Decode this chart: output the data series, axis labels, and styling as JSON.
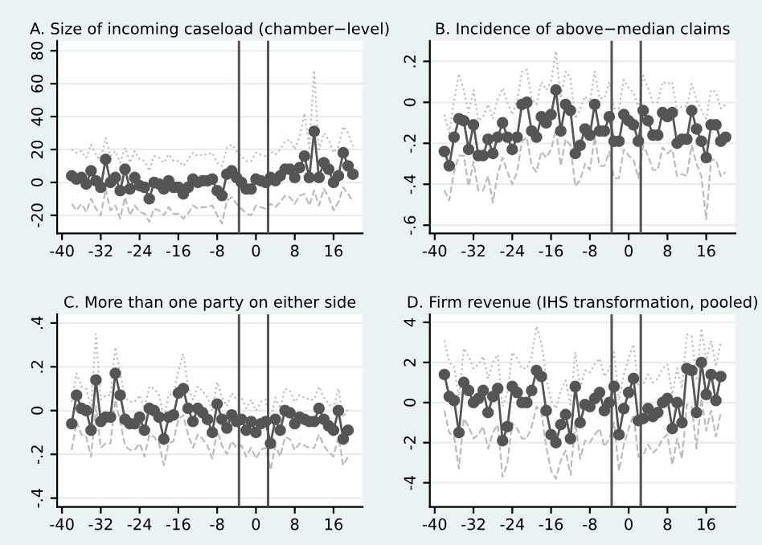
{
  "chart_data": [
    {
      "type": "line",
      "title": "A. Size of incoming caseload (chamber−level)",
      "x": [
        -38,
        -37,
        -36,
        -35,
        -34,
        -33,
        -32,
        -31,
        -30,
        -29,
        -28,
        -27,
        -26,
        -25,
        -24,
        -23,
        -22,
        -21,
        -20,
        -19,
        -18,
        -17,
        -16,
        -15,
        -14,
        -13,
        -12,
        -11,
        -10,
        -9,
        -8,
        -7,
        -6,
        -5,
        -4,
        -3,
        -2,
        -1,
        0,
        1,
        2,
        3,
        4,
        5,
        6,
        7,
        8,
        9,
        10,
        11,
        12,
        13,
        14,
        15,
        16,
        17,
        18,
        19,
        20
      ],
      "series": [
        {
          "color": "#bbbbbb",
          "line_style": "dotted",
          "marker": "none",
          "values": [
            20,
            18,
            19,
            15,
            23,
            17,
            13,
            27,
            16,
            19,
            12,
            21,
            12,
            19,
            14,
            13,
            7,
            16,
            15,
            12,
            17,
            13,
            13,
            10,
            14,
            18,
            16,
            17,
            17,
            18,
            12,
            10,
            21,
            23,
            19,
            16,
            13,
            13,
            18,
            17,
            16,
            19,
            17,
            20,
            25,
            26,
            20,
            28,
            42,
            21,
            68,
            20,
            30,
            26,
            18,
            22,
            34,
            30,
            22
          ]
        },
        {
          "color": "#bbbbbb",
          "line_style": "dashed",
          "marker": "none",
          "values": [
            -13,
            -17,
            -13,
            -18,
            -10,
            -16,
            -20,
            -4,
            -17,
            -14,
            -22,
            -9,
            -20,
            -14,
            -18,
            -19,
            -24,
            -16,
            -17,
            -20,
            -15,
            -19,
            -19,
            -22,
            -19,
            -14,
            -16,
            -15,
            -15,
            -14,
            -20,
            -25,
            -11,
            -9,
            -13,
            -16,
            -19,
            -20,
            -14,
            -15,
            -16,
            -13,
            -15,
            -12,
            -8,
            -9,
            -13,
            -8,
            -7,
            -14,
            -5,
            -14,
            -4,
            -9,
            -17,
            -12,
            -3,
            -7,
            -12
          ]
        },
        {
          "color": "#555555",
          "line_style": "solid",
          "marker": "circle",
          "values": [
            4,
            2,
            3,
            -1,
            7,
            1,
            -3,
            14,
            0,
            3,
            -5,
            8,
            -4,
            3,
            -2,
            -3,
            -10,
            0,
            -1,
            -4,
            1,
            -3,
            -3,
            -7,
            -3,
            2,
            0,
            1,
            1,
            2,
            -5,
            -8,
            5,
            7,
            3,
            0,
            -4,
            -4,
            2,
            1,
            0,
            3,
            1,
            4,
            8,
            8,
            3,
            9,
            16,
            3,
            31,
            3,
            12,
            8,
            0,
            4,
            18,
            10,
            5
          ]
        }
      ],
      "xlim": [
        -41,
        22
      ],
      "xticks": [
        -40,
        -32,
        -24,
        -16,
        -8,
        0,
        8,
        16
      ],
      "ylim": [
        -31,
        86
      ],
      "yticks": [
        -20,
        0,
        20,
        40,
        60,
        80
      ],
      "grid": "y",
      "ref_lines": [
        {
          "axis": "x",
          "value": -3.5,
          "color": "#555555"
        },
        {
          "axis": "x",
          "value": 2.5,
          "color": "#555555"
        }
      ]
    },
    {
      "type": "line",
      "title": "B. Incidence of above−median claims",
      "x": [
        -38,
        -37,
        -36,
        -35,
        -34,
        -33,
        -32,
        -31,
        -30,
        -29,
        -28,
        -27,
        -26,
        -25,
        -24,
        -23,
        -22,
        -21,
        -20,
        -19,
        -18,
        -17,
        -16,
        -15,
        -14,
        -13,
        -12,
        -11,
        -10,
        -9,
        -8,
        -7,
        -6,
        -5,
        -4,
        -3,
        -2,
        -1,
        0,
        1,
        2,
        3,
        4,
        5,
        6,
        7,
        8,
        9,
        10,
        11,
        12,
        13,
        14,
        15,
        16,
        17,
        18,
        19,
        20
      ],
      "series": [
        {
          "color": "#bbbbbb",
          "line_style": "dotted",
          "marker": "none",
          "values": [
            -0.06,
            -0.15,
            0.01,
            0.14,
            0.06,
            -0.05,
            0.06,
            -0.09,
            -0.07,
            -0.01,
            -0.08,
            0.02,
            0.07,
            0,
            -0.06,
            0.01,
            0.15,
            0.16,
            0.02,
            -0.01,
            0.1,
            0.06,
            0.1,
            0.25,
            0.02,
            0.15,
            0.12,
            -0.08,
            -0.03,
            0.03,
            0,
            0.15,
            0.02,
            0.02,
            0.1,
            -0.03,
            -0.03,
            0.11,
            0.07,
            0.05,
            -0.03,
            0.13,
            0.07,
            0,
            0,
            0.1,
            0.09,
            0.1,
            -0.04,
            -0.02,
            -0.02,
            0.09,
            0.01,
            -0.04,
            -0.08,
            0.06,
            0.05,
            -0.03,
            -0.01
          ]
        },
        {
          "color": "#bbbbbb",
          "line_style": "dashed",
          "marker": "none",
          "values": [
            -0.43,
            -0.48,
            -0.34,
            -0.26,
            -0.26,
            -0.41,
            -0.29,
            -0.43,
            -0.43,
            -0.36,
            -0.49,
            -0.35,
            -0.27,
            -0.34,
            -0.4,
            -0.34,
            -0.19,
            -0.17,
            -0.31,
            -0.34,
            -0.24,
            -0.27,
            -0.23,
            -0.13,
            -0.31,
            -0.18,
            -0.21,
            -0.41,
            -0.38,
            -0.3,
            -0.33,
            -0.17,
            -0.31,
            -0.31,
            -0.24,
            -0.37,
            -0.37,
            -0.23,
            -0.26,
            -0.28,
            -0.37,
            -0.21,
            -0.26,
            -0.33,
            -0.33,
            -0.22,
            -0.25,
            -0.23,
            -0.36,
            -0.35,
            -0.36,
            -0.21,
            -0.3,
            -0.36,
            -0.57,
            -0.28,
            -0.28,
            -0.36,
            -0.34
          ]
        },
        {
          "color": "#555555",
          "line_style": "solid",
          "marker": "circle",
          "values": [
            -0.24,
            -0.31,
            -0.17,
            -0.08,
            -0.09,
            -0.23,
            -0.11,
            -0.26,
            -0.26,
            -0.18,
            -0.25,
            -0.17,
            -0.1,
            -0.17,
            -0.23,
            -0.17,
            -0.01,
            0,
            -0.14,
            -0.17,
            -0.07,
            -0.1,
            -0.06,
            0.06,
            -0.14,
            -0.01,
            -0.04,
            -0.25,
            -0.21,
            -0.13,
            -0.16,
            -0.01,
            -0.14,
            -0.14,
            -0.07,
            -0.19,
            -0.19,
            -0.06,
            -0.09,
            -0.11,
            -0.19,
            -0.04,
            -0.09,
            -0.16,
            -0.16,
            -0.05,
            -0.07,
            -0.05,
            -0.2,
            -0.18,
            -0.18,
            -0.04,
            -0.13,
            -0.19,
            -0.27,
            -0.11,
            -0.11,
            -0.19,
            -0.17
          ]
        }
      ],
      "xlim": [
        -41,
        22
      ],
      "xticks": [
        -40,
        -32,
        -24,
        -16,
        -8,
        0,
        8,
        16
      ],
      "ylim": [
        -0.64,
        0.3
      ],
      "yticks": [
        {
          "value": -0.6,
          "label": "-.6"
        },
        {
          "value": -0.4,
          "label": "-.4"
        },
        {
          "value": -0.2,
          "label": "-.2"
        },
        0,
        {
          "value": 0.2,
          "label": ".2"
        }
      ],
      "grid": "y",
      "ref_lines": [
        {
          "axis": "x",
          "value": -3.5,
          "color": "#555555"
        },
        {
          "axis": "x",
          "value": 2.5,
          "color": "#555555"
        }
      ]
    },
    {
      "type": "line",
      "title": "C. More than one party on either side",
      "x": [
        -38,
        -37,
        -36,
        -35,
        -34,
        -33,
        -32,
        -31,
        -30,
        -29,
        -28,
        -27,
        -26,
        -25,
        -24,
        -23,
        -22,
        -21,
        -20,
        -19,
        -18,
        -17,
        -16,
        -15,
        -14,
        -13,
        -12,
        -11,
        -10,
        -9,
        -8,
        -7,
        -6,
        -5,
        -4,
        -3,
        -2,
        -1,
        0,
        1,
        2,
        3,
        4,
        5,
        6,
        7,
        8,
        9,
        10,
        11,
        12,
        13,
        14,
        15,
        16,
        17,
        18,
        19
      ],
      "series": [
        {
          "color": "#bbbbbb",
          "line_style": "dotted",
          "marker": "none",
          "values": [
            0.04,
            0.17,
            0.11,
            0.1,
            0.01,
            0.35,
            0.05,
            0.07,
            0.07,
            0.29,
            0.17,
            0.06,
            0.04,
            0.04,
            0.07,
            0.01,
            0.11,
            0.1,
            0.07,
            -0.03,
            0.07,
            0.08,
            0.18,
            0.26,
            0.11,
            0.05,
            0.11,
            0.09,
            0.06,
            0,
            0.13,
            0.06,
            0.02,
            0.08,
            0.05,
            0.06,
            0.01,
            0.05,
            0,
            0.04,
            0.05,
            -0.05,
            0.06,
            0.01,
            0.1,
            0.09,
            0.04,
            0.07,
            0.06,
            0.05,
            0.05,
            0.11,
            0.06,
            0.03,
            0.01,
            0.1,
            -0.03,
            0.01
          ]
        },
        {
          "color": "#bbbbbb",
          "line_style": "dashed",
          "marker": "none",
          "values": [
            -0.18,
            -0.05,
            -0.11,
            -0.12,
            -0.21,
            0.02,
            -0.17,
            -0.15,
            -0.15,
            0.05,
            -0.05,
            -0.16,
            -0.18,
            -0.18,
            -0.15,
            -0.21,
            -0.11,
            -0.12,
            -0.15,
            -0.25,
            -0.15,
            -0.14,
            -0.04,
            -0.02,
            -0.11,
            -0.17,
            -0.11,
            -0.13,
            -0.16,
            -0.22,
            -0.09,
            -0.16,
            -0.2,
            -0.14,
            -0.17,
            -0.16,
            -0.21,
            -0.17,
            -0.22,
            -0.18,
            -0.17,
            -0.27,
            -0.16,
            -0.21,
            -0.12,
            -0.13,
            -0.18,
            -0.15,
            -0.16,
            -0.17,
            -0.17,
            -0.11,
            -0.16,
            -0.19,
            -0.21,
            -0.12,
            -0.25,
            -0.21
          ]
        },
        {
          "color": "#555555",
          "line_style": "solid",
          "marker": "circle",
          "values": [
            -0.06,
            0.07,
            0.01,
            0,
            -0.09,
            0.14,
            -0.05,
            -0.03,
            -0.03,
            0.17,
            0.07,
            -0.04,
            -0.06,
            -0.06,
            -0.03,
            -0.09,
            0.01,
            0,
            -0.03,
            -0.13,
            -0.03,
            -0.02,
            0.08,
            0.1,
            0.01,
            -0.05,
            0.01,
            -0.01,
            -0.04,
            -0.1,
            0.03,
            -0.04,
            -0.08,
            -0.02,
            -0.05,
            -0.04,
            -0.09,
            -0.05,
            -0.1,
            -0.06,
            -0.05,
            -0.15,
            -0.04,
            -0.09,
            0,
            -0.01,
            -0.06,
            -0.03,
            -0.04,
            -0.05,
            -0.05,
            0.01,
            -0.04,
            -0.07,
            -0.09,
            0,
            -0.13,
            -0.09
          ]
        }
      ],
      "xlim": [
        -41,
        22
      ],
      "xticks": [
        -40,
        -32,
        -24,
        -16,
        -8,
        0,
        8,
        16
      ],
      "ylim": [
        -0.44,
        0.44
      ],
      "yticks": [
        {
          "value": -0.4,
          "label": "-.4"
        },
        {
          "value": -0.2,
          "label": "-.2"
        },
        0,
        {
          "value": 0.2,
          "label": ".2"
        },
        {
          "value": 0.4,
          "label": ".4"
        }
      ],
      "grid": "y",
      "ref_lines": [
        {
          "axis": "x",
          "value": -3.5,
          "color": "#555555"
        },
        {
          "axis": "x",
          "value": 2.5,
          "color": "#555555"
        }
      ]
    },
    {
      "type": "line",
      "title": "D. Firm revenue (IHS transformation, pooled)",
      "x": [
        -38,
        -37,
        -36,
        -35,
        -34,
        -33,
        -32,
        -31,
        -30,
        -29,
        -28,
        -27,
        -26,
        -25,
        -24,
        -23,
        -22,
        -21,
        -20,
        -19,
        -18,
        -17,
        -16,
        -15,
        -14,
        -13,
        -12,
        -11,
        -10,
        -9,
        -8,
        -7,
        -6,
        -5,
        -4,
        -3,
        -2,
        -1,
        0,
        1,
        2,
        3,
        4,
        5,
        6,
        7,
        8,
        9,
        10,
        11,
        12,
        13,
        14,
        15,
        16,
        17,
        18,
        19
      ],
      "series": [
        {
          "color": "#bbbbbb",
          "line_style": "dotted",
          "marker": "none",
          "values": [
            3.1,
            2,
            1.8,
            0.2,
            2.7,
            2.3,
            1.7,
            1.9,
            2.3,
            1.2,
            2,
            2.4,
            -0.2,
            0.5,
            2.5,
            2.2,
            1.7,
            1.7,
            2.3,
            3.8,
            3,
            1.3,
            0.1,
            -0.3,
            0.6,
            1.1,
            -0.1,
            2.5,
            0.7,
            1.6,
            1.5,
            1.9,
            2.2,
            1.3,
            1.7,
            2.5,
            0.1,
            1.4,
            2.2,
            2.9,
            0.8,
            0.9,
            1.4,
            1,
            1.2,
            1.7,
            1.9,
            0.4,
            1.7,
            0.7,
            3.4,
            3.3,
            1.2,
            3.7,
            2.1,
            3.1,
            1.8,
            3
          ]
        },
        {
          "color": "#bbbbbb",
          "line_style": "dashed",
          "marker": "none",
          "values": [
            -0.4,
            -1.5,
            -1.7,
            -3.3,
            -0.8,
            -1.2,
            -1.8,
            -1.6,
            -1.2,
            -2.3,
            -1.5,
            -1.1,
            -3.7,
            -3,
            -1,
            -1.3,
            -1.8,
            -1.8,
            -1.2,
            -0.2,
            -0.5,
            -2.2,
            -3.4,
            -3.8,
            -2.9,
            -2.4,
            -3.6,
            -1,
            -2.8,
            -1.9,
            -2,
            -1.6,
            -1.3,
            -2.2,
            -1.8,
            -1,
            -3.4,
            -2.1,
            -1.3,
            -0.6,
            -2.7,
            -2.6,
            -2.1,
            -2.5,
            -2.3,
            -1.8,
            -1.6,
            -3.1,
            -1.8,
            -2.8,
            -0.1,
            -0.2,
            -2.3,
            0.2,
            -1.4,
            -0.4,
            -1.7,
            -0.5
          ]
        },
        {
          "color": "#555555",
          "line_style": "solid",
          "marker": "circle",
          "values": [
            1.4,
            0.3,
            0.1,
            -1.5,
            1,
            0.6,
            0,
            0.2,
            0.6,
            -0.5,
            0.3,
            0.7,
            -1.9,
            -1.2,
            0.8,
            0.5,
            0,
            0,
            0.6,
            1.6,
            1.3,
            -0.4,
            -1.6,
            -2,
            -1.1,
            -0.6,
            -1.8,
            0.8,
            -1,
            -0.1,
            -0.2,
            0.2,
            0.5,
            -0.4,
            0,
            0.8,
            -1.6,
            -0.3,
            0.5,
            1.2,
            -0.9,
            -0.8,
            -0.3,
            -0.7,
            -0.5,
            0,
            0.2,
            -1.3,
            0,
            -1,
            1.7,
            1.6,
            -0.5,
            2,
            0.4,
            1.4,
            0.1,
            1.3
          ]
        }
      ],
      "xlim": [
        -41,
        22
      ],
      "xticks": [
        -40,
        -32,
        -24,
        -16,
        -8,
        0,
        8,
        16
      ],
      "ylim": [
        -5.2,
        4.4
      ],
      "yticks": [
        -4,
        -2,
        0,
        2,
        4
      ],
      "grid": "y",
      "ref_lines": [
        {
          "axis": "x",
          "value": -3.5,
          "color": "#555555"
        },
        {
          "axis": "x",
          "value": 2.5,
          "color": "#555555"
        }
      ]
    }
  ]
}
